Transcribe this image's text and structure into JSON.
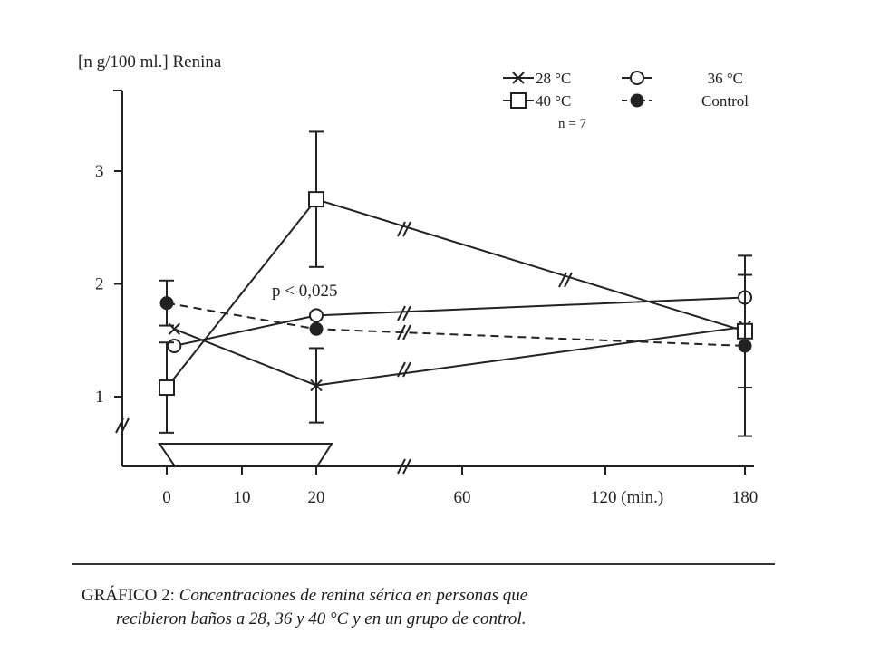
{
  "chart_data": {
    "type": "line",
    "ylabel": "[n g/100 ml.] Renina",
    "yticks": [
      1,
      2,
      3
    ],
    "ylim": [
      0.6,
      3.6
    ],
    "x_tick_labels": [
      "0",
      "10",
      "20",
      "60",
      "120 (min.)",
      "180"
    ],
    "x_positions": [
      0,
      10,
      20,
      60,
      120,
      180
    ],
    "n_label": "n = 7",
    "annotation": "p < 0,025",
    "series": [
      {
        "name": "28 °C",
        "marker": "x",
        "dash": "solid",
        "x": [
          1,
          20,
          180
        ],
        "y": [
          1.6,
          1.1,
          1.62
        ],
        "err": [
          null,
          0.33,
          null
        ]
      },
      {
        "name": "36 °C",
        "marker": "open-circle",
        "dash": "solid",
        "x": [
          1,
          20,
          180
        ],
        "y": [
          1.45,
          1.72,
          1.88
        ],
        "err": [
          null,
          null,
          null
        ]
      },
      {
        "name": "40 °C",
        "marker": "open-square",
        "dash": "solid",
        "x": [
          0,
          20,
          180
        ],
        "y": [
          1.08,
          2.75,
          1.58
        ],
        "err": [
          0.4,
          0.6,
          0.5
        ]
      },
      {
        "name": "Control",
        "marker": "filled-circle",
        "dash": "dashed",
        "x": [
          0,
          20,
          180
        ],
        "y": [
          1.83,
          1.6,
          1.45
        ],
        "err": [
          0.2,
          null,
          0.8
        ]
      }
    ]
  },
  "caption": {
    "label": "GRÁFICO 2:",
    "line1": "Concentraciones de renina sérica en personas que",
    "line2": "recibieron baños a 28, 36 y 40 °C y en un grupo de control."
  },
  "colors": {
    "ink": "#222222",
    "background": "#ffffff"
  }
}
